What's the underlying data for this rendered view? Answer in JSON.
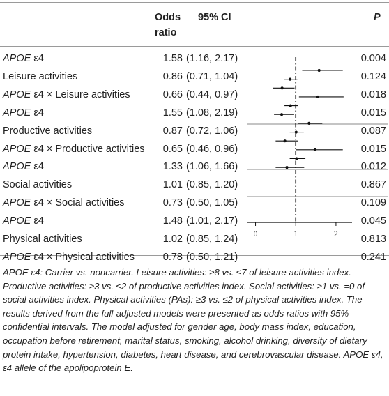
{
  "header": {
    "odds_ratio_line1": "Odds",
    "odds_ratio_line2": "ratio",
    "ci": "95% CI",
    "p": "P"
  },
  "rows": [
    {
      "lead": "APOE",
      "rest": " ε4",
      "or": "1.58",
      "ci": "(1.16, 2.17)",
      "p": "0.004"
    },
    {
      "lead": "",
      "rest": "Leisure activities",
      "or": "0.86",
      "ci": "(0.71, 1.04)",
      "p": "0.124"
    },
    {
      "lead": "APOE",
      "rest": " ε4 × Leisure activities",
      "or": "0.66",
      "ci": "(0.44, 0.97)",
      "p": "0.018"
    },
    {
      "lead": "APOE",
      "rest": " ε4",
      "or": "1.55",
      "ci": "(1.08, 2.19)",
      "p": "0.015"
    },
    {
      "lead": "",
      "rest": "Productive activities",
      "or": "0.87",
      "ci": "(0.72, 1.06)",
      "p": "0.087"
    },
    {
      "lead": "APOE",
      "rest": " ε4 × Productive activities",
      "or": "0.65",
      "ci": "(0.46, 0.96)",
      "p": "0.015"
    },
    {
      "lead": "APOE",
      "rest": " ε4",
      "or": "1.33",
      "ci": "(1.06, 1.66)",
      "p": "0.012"
    },
    {
      "lead": "",
      "rest": "Social activities",
      "or": "1.01",
      "ci": "(0.85, 1.20)",
      "p": "0.867"
    },
    {
      "lead": "APOE",
      "rest": " ε4 × Social activities",
      "or": "0.73",
      "ci": "(0.50, 1.05)",
      "p": "0.109"
    },
    {
      "lead": "APOE",
      "rest": " ε4",
      "or": "1.48",
      "ci": "(1.01, 2.17)",
      "p": "0.045"
    },
    {
      "lead": "",
      "rest": "Physical activities",
      "or": "1.02",
      "ci": "(0.85, 1.24)",
      "p": "0.813"
    },
    {
      "lead": "APOE",
      "rest": " ε4 × Physical activities",
      "or": "0.78",
      "ci": "(0.50, 1.21)",
      "p": "0.241"
    }
  ],
  "chart_data": {
    "type": "scatter",
    "xlim": [
      -0.2,
      2.4
    ],
    "x_ticks": [
      "0",
      "1",
      "2"
    ],
    "reference_line": 1,
    "estimates": [
      {
        "or": 1.58,
        "lo": 1.16,
        "hi": 2.17
      },
      {
        "or": 0.86,
        "lo": 0.71,
        "hi": 1.04
      },
      {
        "or": 0.66,
        "lo": 0.44,
        "hi": 0.97
      },
      {
        "or": 1.55,
        "lo": 1.08,
        "hi": 2.19
      },
      {
        "or": 0.87,
        "lo": 0.72,
        "hi": 1.06
      },
      {
        "or": 0.65,
        "lo": 0.46,
        "hi": 0.96
      },
      {
        "or": 1.33,
        "lo": 1.06,
        "hi": 1.66
      },
      {
        "or": 1.01,
        "lo": 0.85,
        "hi": 1.2
      },
      {
        "or": 0.73,
        "lo": 0.5,
        "hi": 1.05
      },
      {
        "or": 1.48,
        "lo": 1.01,
        "hi": 2.17
      },
      {
        "or": 1.02,
        "lo": 0.85,
        "hi": 1.24
      },
      {
        "or": 0.78,
        "lo": 0.5,
        "hi": 1.21
      }
    ]
  },
  "footnote": "APOE ε4: Carrier vs. noncarrier. Leisure activities: ≥8 vs. ≤7 of leisure activities index. Productive activities: ≥3 vs. ≤2 of productive activities index. Social activities: ≥1 vs. =0 of social activities index. Physical activities (PAs): ≥3 vs. ≤2 of physical activities index. The results derived from the full-adjusted models were presented as odds ratios with 95% confidential intervals. The model adjusted for gender age, body mass index, education, occupation before retirement, marital status, smoking, alcohol drinking, diversity of dietary protein intake, hypertension, diabetes, heart disease, and cerebrovascular disease. APOE ε4, ε4 allele of the apolipoprotein E."
}
